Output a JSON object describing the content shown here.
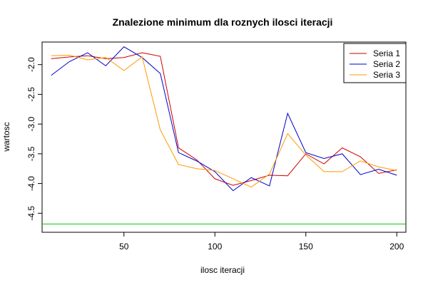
{
  "chart_data": {
    "type": "line",
    "title": "Znalezione minimum dla roznych ilosci iteracji",
    "xlabel": "ilosc iteracji",
    "ylabel": "wartosc",
    "xlim": [
      5,
      205
    ],
    "ylim": [
      -4.82,
      -1.62
    ],
    "xticks": [
      50,
      100,
      150,
      200
    ],
    "yticks": [
      -2.0,
      -2.5,
      -3.0,
      -3.5,
      -4.0,
      -4.5
    ],
    "ytick_labels": [
      "-2.0",
      "-2.5",
      "-3.0",
      "-3.5",
      "-4.0",
      "-4.5"
    ],
    "grid": false,
    "legend_position": "top-right",
    "x": [
      10,
      20,
      30,
      40,
      50,
      60,
      70,
      80,
      90,
      100,
      110,
      120,
      130,
      140,
      150,
      160,
      170,
      180,
      190,
      200
    ],
    "series": [
      {
        "name": "Seria 1",
        "color": "#cc0000",
        "values": [
          -1.9,
          -1.87,
          -1.85,
          -1.9,
          -1.88,
          -1.8,
          -1.86,
          -3.4,
          -3.6,
          -3.92,
          -4.03,
          -3.95,
          -3.86,
          -3.87,
          -3.5,
          -3.67,
          -3.4,
          -3.55,
          -3.83,
          -3.77
        ]
      },
      {
        "name": "Seria 2",
        "color": "#0000cc",
        "values": [
          -2.18,
          -1.95,
          -1.8,
          -2.02,
          -1.7,
          -1.88,
          -2.15,
          -3.48,
          -3.62,
          -3.8,
          -4.12,
          -3.9,
          -4.04,
          -2.82,
          -3.48,
          -3.58,
          -3.5,
          -3.85,
          -3.76,
          -3.86
        ]
      },
      {
        "name": "Seria 3",
        "color": "#ff9900",
        "values": [
          -1.85,
          -1.84,
          -1.92,
          -1.88,
          -2.1,
          -1.87,
          -3.1,
          -3.68,
          -3.75,
          -3.78,
          -3.92,
          -4.06,
          -3.84,
          -3.16,
          -3.52,
          -3.8,
          -3.8,
          -3.62,
          -3.72,
          -3.78
        ]
      }
    ],
    "reference_line": {
      "y": -4.68,
      "color": "#00cc00"
    }
  }
}
